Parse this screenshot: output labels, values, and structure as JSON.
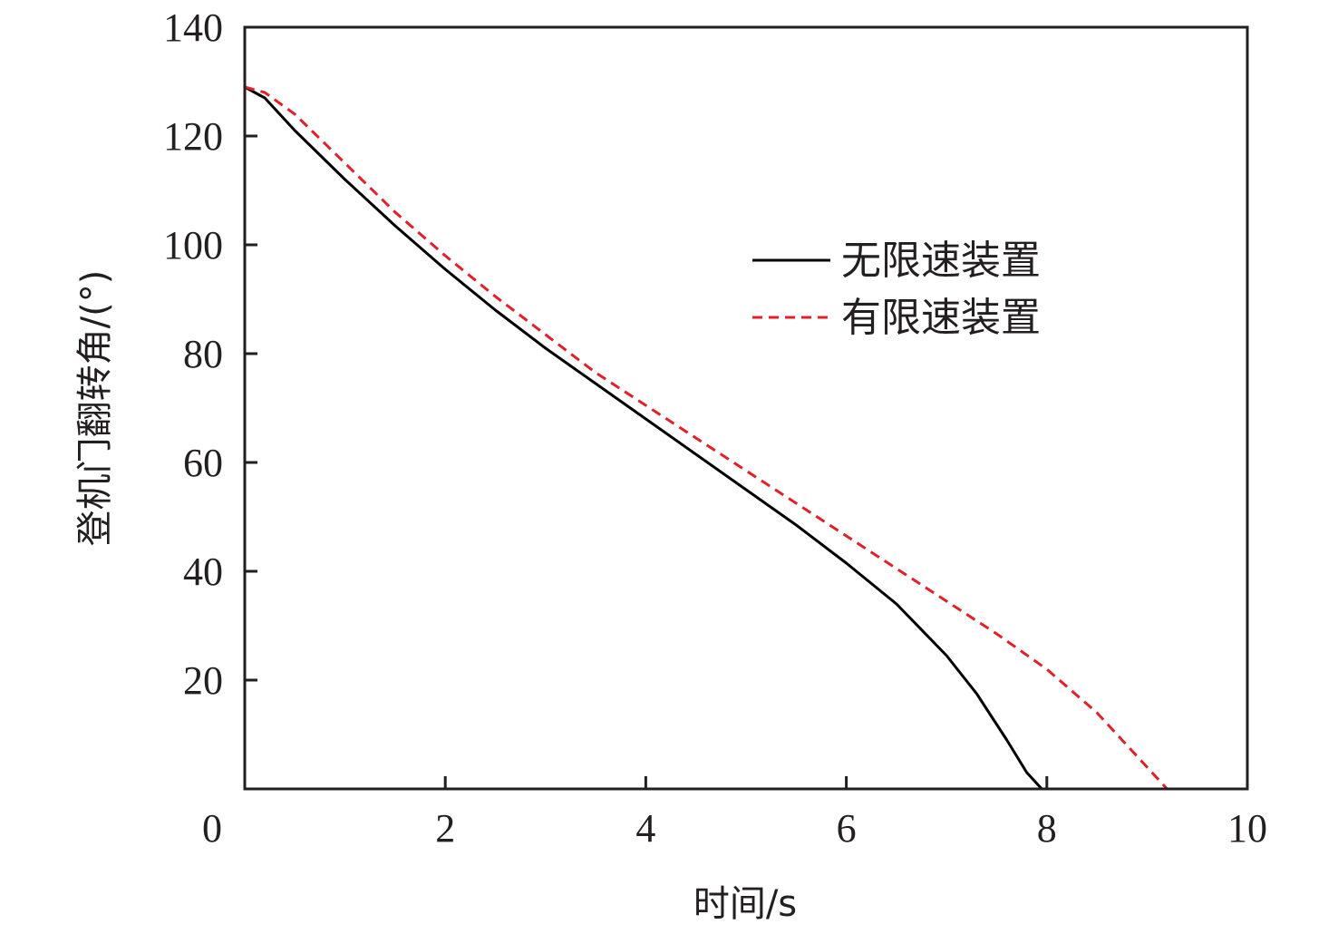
{
  "chart_data": {
    "type": "line",
    "title": "",
    "xlabel": "时间/s",
    "ylabel": "登机门翻转角/(°)",
    "xlim": [
      0,
      10
    ],
    "ylim": [
      0,
      140
    ],
    "x_ticks": [
      0,
      2,
      4,
      6,
      8,
      10
    ],
    "y_ticks": [
      20,
      40,
      60,
      80,
      100,
      120,
      140
    ],
    "x_tick_labels": [
      "0",
      "2",
      "4",
      "6",
      "8",
      "10"
    ],
    "y_tick_labels": [
      "20",
      "40",
      "60",
      "80",
      "100",
      "120",
      "140"
    ],
    "grid": false,
    "legend_position": "upper-right",
    "series": [
      {
        "name": "无限速装置",
        "color": "#000000",
        "dash": "solid",
        "x": [
          0,
          0.2,
          0.5,
          1.0,
          1.5,
          2.0,
          2.5,
          3.0,
          3.5,
          4.0,
          4.5,
          5.0,
          5.5,
          6.0,
          6.5,
          7.0,
          7.3,
          7.6,
          7.8,
          7.95
        ],
        "y": [
          129,
          127,
          121,
          112,
          103.5,
          95.5,
          88,
          81,
          74.5,
          68,
          61.5,
          55,
          48.5,
          41.5,
          34,
          24.5,
          17.5,
          9,
          3,
          0
        ]
      },
      {
        "name": "有限速装置",
        "color": "#e0202a",
        "dash": "dashed",
        "x": [
          0,
          0.2,
          0.5,
          1.0,
          1.5,
          2.0,
          2.5,
          3.0,
          3.5,
          4.0,
          4.5,
          5.0,
          5.5,
          6.0,
          6.5,
          7.0,
          7.5,
          8.0,
          8.5,
          8.8,
          9.0,
          9.2
        ],
        "y": [
          129,
          128,
          124,
          115,
          106,
          98,
          90.5,
          83.5,
          76.5,
          70.5,
          64.5,
          58.5,
          52.5,
          46.5,
          40.5,
          34.5,
          28.5,
          22,
          14,
          8,
          4,
          0
        ]
      }
    ]
  }
}
